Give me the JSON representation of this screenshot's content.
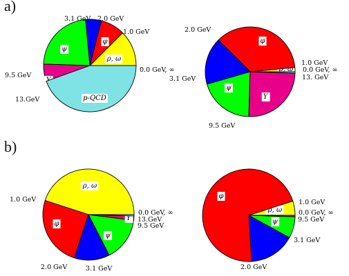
{
  "panels": [
    {
      "label": "a)"
    },
    {
      "label": "b)"
    }
  ],
  "colors": {
    "rho_omega": "#ffff00",
    "phi": "#ff0000",
    "psi": "#00ff00",
    "jpsi_blue": "#0000ff",
    "upsilon": "#e8008a",
    "pqcd": "#7fe3e6"
  },
  "chart_data": [
    {
      "type": "pie",
      "panel": "a)",
      "boundary_labels": [
        "0.0 GeV, ∞",
        "1.0 GeV",
        "2.0 GeV",
        "3.1 GeV",
        "9.5 GeV",
        "13.GeV"
      ],
      "slices": [
        {
          "name": "ρ, ω",
          "value": 12.5,
          "color": "#ffff00"
        },
        {
          "name": "φ",
          "value": 8.5,
          "color": "#ff0000"
        },
        {
          "name": "",
          "value": 5.5,
          "color": "#0000ff"
        },
        {
          "name": "ψ",
          "value": 23.0,
          "color": "#00ff00"
        },
        {
          "name": "Υ",
          "value": 6.0,
          "color": "#e8008a"
        },
        {
          "name": "p-QCD",
          "value": 44.5,
          "color": "#7fe3e6"
        }
      ]
    },
    {
      "type": "pie",
      "panel": "a)",
      "boundary_labels": [
        "1.0 GeV",
        "0.0 GeV, ∞",
        "13. GeV",
        "9.5 GeV",
        "3.1 GeV",
        "2.0 GeV"
      ],
      "slices": [
        {
          "name": "ρ, ω",
          "value": 1.5,
          "color": "#ffff00"
        },
        {
          "name": "φ",
          "value": 36.0,
          "color": "#ff0000"
        },
        {
          "name": "",
          "value": 17.0,
          "color": "#0000ff"
        },
        {
          "name": "ψ",
          "value": 20.0,
          "color": "#00ff00"
        },
        {
          "name": "Υ",
          "value": 25.0,
          "color": "#e8008a"
        },
        {
          "name": "",
          "value": 0.5,
          "color": "#7fe3e6"
        }
      ]
    },
    {
      "type": "pie",
      "panel": "b)",
      "boundary_labels": [
        "0.0 GeV, ∞",
        "1.0 GeV",
        "2.0 GeV",
        "3.1 GeV",
        "9.5 GeV",
        "13.GeV"
      ],
      "slices": [
        {
          "name": "ρ, ω",
          "value": 45.0,
          "color": "#ffff00"
        },
        {
          "name": "φ",
          "value": 25.0,
          "color": "#ff0000"
        },
        {
          "name": "",
          "value": 12.5,
          "color": "#0000ff"
        },
        {
          "name": "ψ",
          "value": 15.5,
          "color": "#00ff00"
        },
        {
          "name": "Υ",
          "value": 1.5,
          "color": "#e8008a"
        },
        {
          "name": "",
          "value": 0.5,
          "color": "#7fe3e6"
        }
      ]
    },
    {
      "type": "pie",
      "panel": "b)",
      "boundary_labels": [
        "1.0 GeV",
        "0.0 GeV, ∞",
        "9.5 GeV",
        "3.1 GeV",
        "2.0 GeV"
      ],
      "slices": [
        {
          "name": "ρ, ω",
          "value": 5.0,
          "color": "#ffff00"
        },
        {
          "name": "φ",
          "value": 71.0,
          "color": "#ff0000"
        },
        {
          "name": "",
          "value": 16.0,
          "color": "#0000ff"
        },
        {
          "name": "ψ",
          "value": 7.5,
          "color": "#00ff00"
        },
        {
          "name": "",
          "value": 0.5,
          "color": "#e8008a"
        }
      ]
    }
  ]
}
